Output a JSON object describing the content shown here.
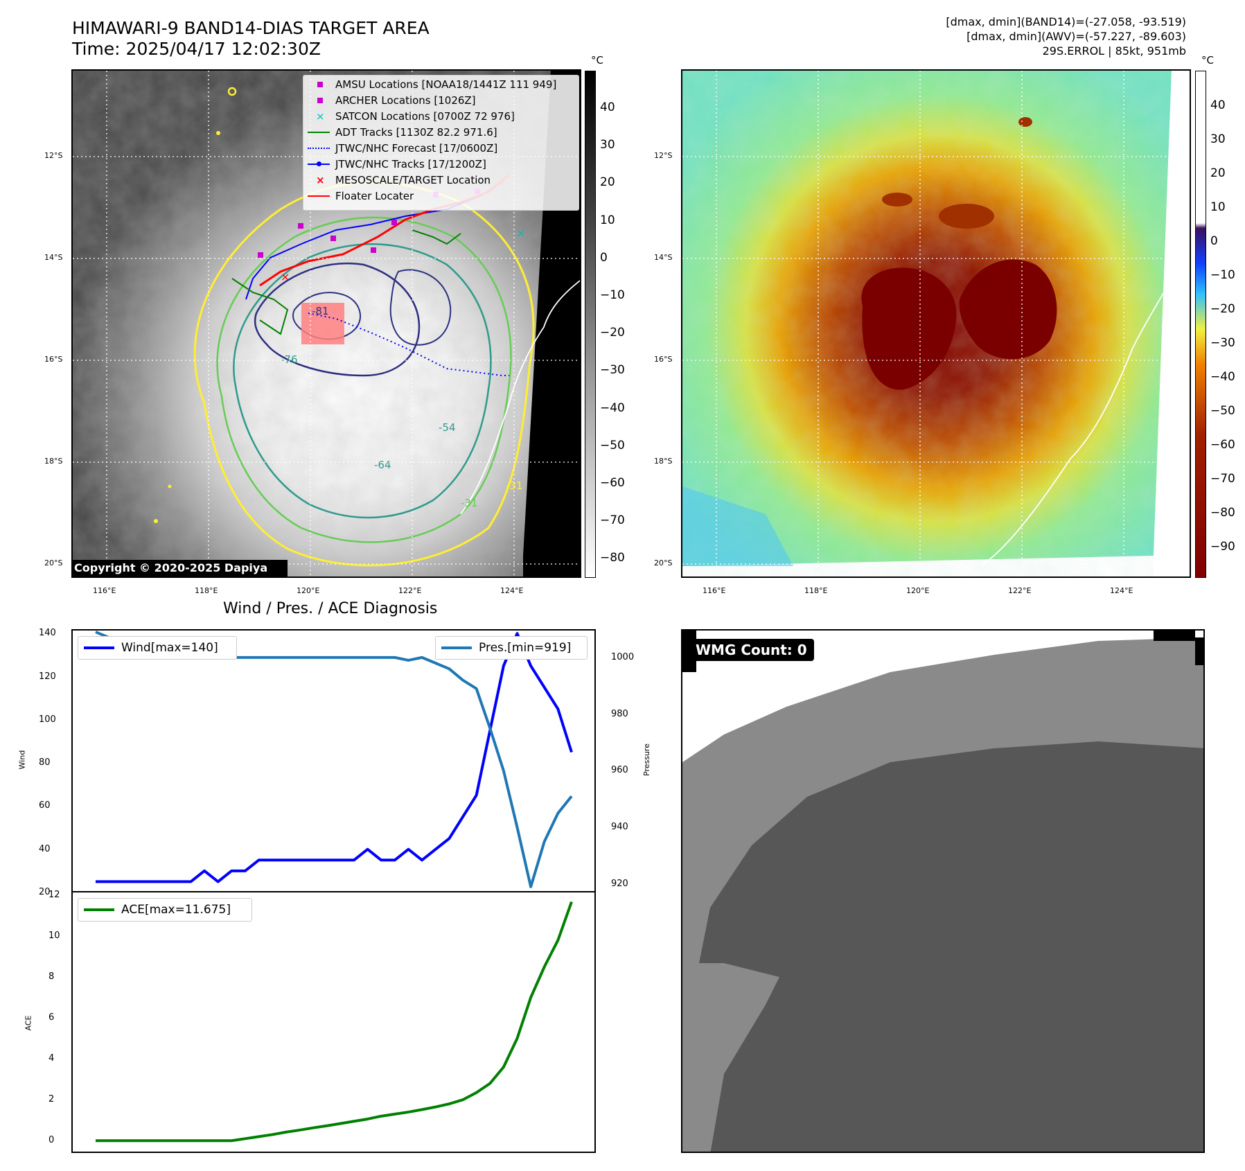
{
  "header": {
    "title_line1": "HIMAWARI-9 BAND14-DIAS TARGET AREA",
    "title_line2": "Time: 2025/04/17 12:02:30Z",
    "info_line1": "[dmax, dmin](BAND14)=(-27.058, -93.519)",
    "info_line2": "[dmax, dmin](AWV)=(-57.227, -89.603)",
    "info_line3": "29S.ERROL | 85kt, 951mb"
  },
  "map": {
    "lat_labels": [
      "12°S",
      "14°S",
      "16°S",
      "18°S",
      "20°S"
    ],
    "lon_labels": [
      "116°E",
      "118°E",
      "120°E",
      "122°E",
      "124°E"
    ],
    "copyright": "Copyright © 2020-2025 Dapiya",
    "contour_labels": [
      "-81",
      "-76",
      "-64",
      "-54",
      "-31",
      "-31"
    ],
    "colors": {
      "contour_yellow": "#ffee33",
      "contour_green": "#66cc55",
      "contour_teal": "#2f9a8a",
      "contour_navy": "#2b2f7f"
    }
  },
  "left_colorbar": {
    "unit": "°C",
    "ticks": [
      "40",
      "30",
      "20",
      "10",
      "0",
      "−10",
      "−20",
      "−30",
      "−40",
      "−50",
      "−60",
      "−70",
      "−80"
    ]
  },
  "right_colorbar": {
    "unit": "°C",
    "ticks": [
      "40",
      "30",
      "20",
      "10",
      "0",
      "−10",
      "−20",
      "−30",
      "−40",
      "−50",
      "−60",
      "−70",
      "−80",
      "−90"
    ]
  },
  "legend": {
    "items": [
      {
        "label": "AMSU Locations [NOAA18/1441Z 111 949]",
        "marker": "square",
        "color": "#cc00cc"
      },
      {
        "label": "ARCHER Locations [1026Z]",
        "marker": "square",
        "color": "#cc00cc"
      },
      {
        "label": "SATCON Locations [0700Z 72 976]",
        "marker": "x",
        "color": "#00bbbb"
      },
      {
        "label": "ADT Tracks [1130Z 82.2 971.6]",
        "marker": "line",
        "color": "#008000"
      },
      {
        "label": "JTWC/NHC Forecast [17/0600Z]",
        "marker": "dotted",
        "color": "#0000ff"
      },
      {
        "label": "JTWC/NHC Tracks [17/1200Z]",
        "marker": "line-dot",
        "color": "#0000ff"
      },
      {
        "label": "MESOSCALE/TARGET Location",
        "marker": "x",
        "color": "#ff0000"
      },
      {
        "label": "Floater Locater",
        "marker": "line",
        "color": "#ff0000"
      }
    ]
  },
  "diagnosis": {
    "subtitle": "Wind / Pres. / ACE Diagnosis",
    "wind_legend": "Wind[max=140]",
    "pres_legend": "Pres.[min=919]",
    "ace_legend": "ACE[max=11.675]",
    "wind_ylabel": "Wind",
    "pres_ylabel": "Pressure",
    "ace_ylabel": "ACE",
    "colors": {
      "wind": "#0000ff",
      "pressure": "#1f77b4",
      "ace": "#008000"
    }
  },
  "wmg": {
    "label": "WMG Count: 0"
  },
  "chart_data": [
    {
      "type": "line",
      "name": "wind_pressure",
      "x": [
        0,
        1,
        2,
        3,
        4,
        5,
        6,
        7,
        8,
        9,
        10,
        11,
        12,
        13,
        14,
        15,
        16,
        17,
        18,
        19,
        20,
        21,
        22,
        23,
        24,
        25,
        26,
        27,
        28,
        29,
        30,
        31,
        32,
        33,
        34,
        35
      ],
      "series": [
        {
          "name": "Wind[max=140]",
          "axis": "left",
          "values": [
            25,
            25,
            25,
            25,
            25,
            25,
            25,
            25,
            30,
            25,
            30,
            30,
            35,
            35,
            35,
            35,
            35,
            35,
            35,
            35,
            40,
            35,
            35,
            40,
            35,
            40,
            45,
            55,
            65,
            95,
            125,
            140,
            125,
            115,
            105,
            85
          ]
        },
        {
          "name": "Pres.[min=919]",
          "axis": "right",
          "values": [
            1009,
            1007,
            1007,
            1005,
            1004,
            1002,
            1001,
            1000,
            1001,
            1000,
            1000,
            1000,
            1000,
            1000,
            1000,
            1000,
            1000,
            1000,
            1000,
            1000,
            1000,
            1000,
            1000,
            999,
            1000,
            998,
            996,
            992,
            989,
            975,
            960,
            940,
            919,
            935,
            945,
            951
          ]
        }
      ],
      "ylim_left": [
        20,
        142
      ],
      "ylim_right": [
        917,
        1010
      ],
      "yticks_left": [
        "20",
        "40",
        "60",
        "80",
        "100",
        "120",
        "140"
      ],
      "yticks_right": [
        "920",
        "940",
        "960",
        "980",
        "1000"
      ],
      "ylabel_left": "Wind",
      "ylabel_right": "Pressure"
    },
    {
      "type": "line",
      "name": "ace",
      "x": [
        0,
        1,
        2,
        3,
        4,
        5,
        6,
        7,
        8,
        9,
        10,
        11,
        12,
        13,
        14,
        15,
        16,
        17,
        18,
        19,
        20,
        21,
        22,
        23,
        24,
        25,
        26,
        27,
        28,
        29,
        30,
        31,
        32,
        33,
        34,
        35
      ],
      "series": [
        {
          "name": "ACE[max=11.675]",
          "values": [
            0,
            0,
            0,
            0,
            0,
            0,
            0,
            0,
            0,
            0,
            0,
            0.1,
            0.2,
            0.3,
            0.42,
            0.52,
            0.63,
            0.73,
            0.84,
            0.95,
            1.06,
            1.2,
            1.3,
            1.4,
            1.52,
            1.65,
            1.8,
            2.0,
            2.35,
            2.8,
            3.6,
            5.0,
            7.0,
            8.5,
            9.8,
            11.675
          ]
        }
      ],
      "ylim": [
        -0.6,
        12.2
      ],
      "yticks": [
        "0",
        "2",
        "4",
        "6",
        "8",
        "10",
        "12"
      ],
      "ylabel": "ACE"
    }
  ]
}
